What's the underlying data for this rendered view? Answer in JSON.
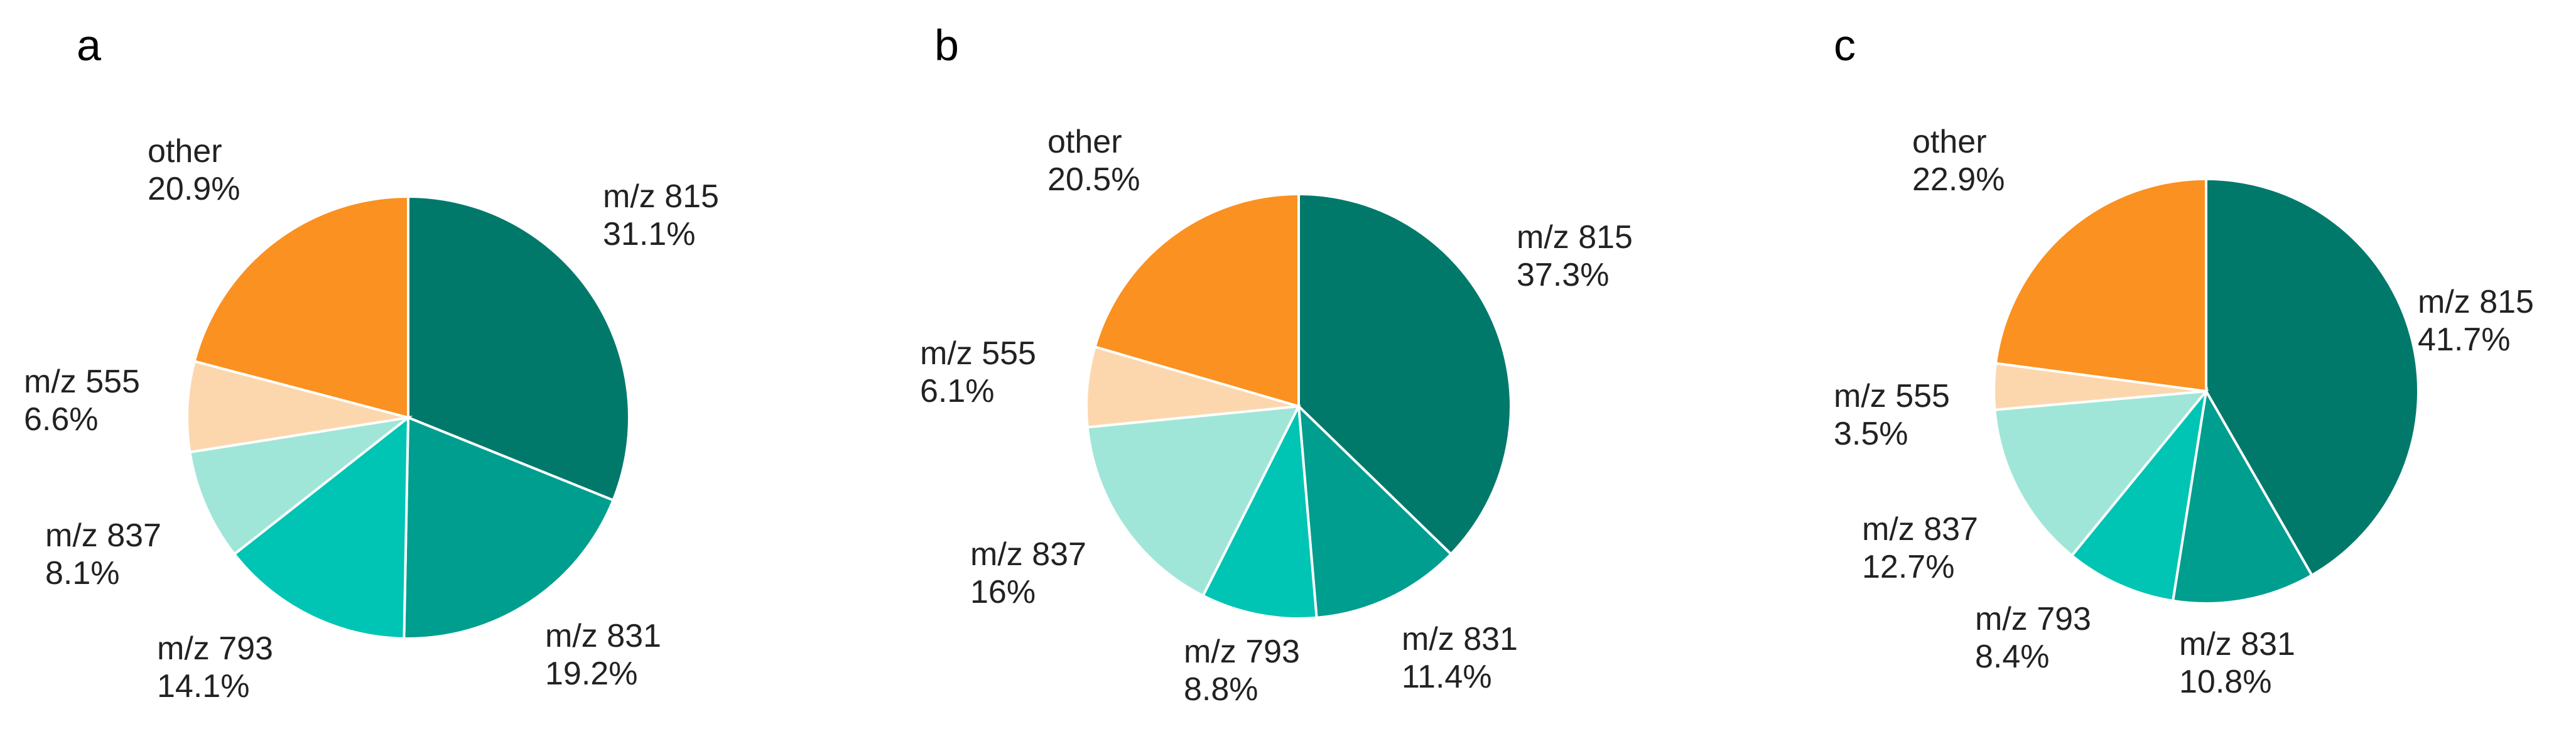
{
  "chart_data": [
    {
      "type": "pie",
      "panel_label": "a",
      "colors": {
        "m/z 815": "#00796B",
        "m/z 831": "#009E8F",
        "m/z 793": "#00C4B4",
        "m/z 837": "#A0E6D8",
        "m/z 555": "#FCD7AE",
        "other": "#FA9121"
      },
      "slices": [
        {
          "name": "m/z 815",
          "value": 31.1,
          "label": "31.1%"
        },
        {
          "name": "m/z 831",
          "value": 19.2,
          "label": "19.2%"
        },
        {
          "name": "m/z 793",
          "value": 14.1,
          "label": "14.1%"
        },
        {
          "name": "m/z 837",
          "value": 8.1,
          "label": "8.1%"
        },
        {
          "name": "m/z 555",
          "value": 6.6,
          "label": "6.6%"
        },
        {
          "name": "other",
          "value": 20.9,
          "label": "20.9%"
        }
      ]
    },
    {
      "type": "pie",
      "panel_label": "b",
      "colors": {
        "m/z 815": "#00796B",
        "m/z 831": "#009E8F",
        "m/z 793": "#00C4B4",
        "m/z 837": "#A0E6D8",
        "m/z 555": "#FCD7AE",
        "other": "#FA9121"
      },
      "slices": [
        {
          "name": "m/z 815",
          "value": 37.3,
          "label": "37.3%"
        },
        {
          "name": "m/z 831",
          "value": 11.4,
          "label": "11.4%"
        },
        {
          "name": "m/z 793",
          "value": 8.8,
          "label": "8.8%"
        },
        {
          "name": "m/z 837",
          "value": 16,
          "label": "16%"
        },
        {
          "name": "m/z 555",
          "value": 6.1,
          "label": "6.1%"
        },
        {
          "name": "other",
          "value": 20.5,
          "label": "20.5%"
        }
      ]
    },
    {
      "type": "pie",
      "panel_label": "c",
      "colors": {
        "m/z 815": "#00796B",
        "m/z 831": "#009E8F",
        "m/z 793": "#00C4B4",
        "m/z 837": "#A0E6D8",
        "m/z 555": "#FCD7AE",
        "other": "#FA9121"
      },
      "slices": [
        {
          "name": "m/z 815",
          "value": 41.7,
          "label": "41.7%"
        },
        {
          "name": "m/z 831",
          "value": 10.8,
          "label": "10.8%"
        },
        {
          "name": "m/z 793",
          "value": 8.4,
          "label": "8.4%"
        },
        {
          "name": "m/z 837",
          "value": 12.7,
          "label": "12.7%"
        },
        {
          "name": "m/z 555",
          "value": 3.5,
          "label": "3.5%"
        },
        {
          "name": "other",
          "value": 22.9,
          "label": "22.9%"
        }
      ]
    }
  ]
}
